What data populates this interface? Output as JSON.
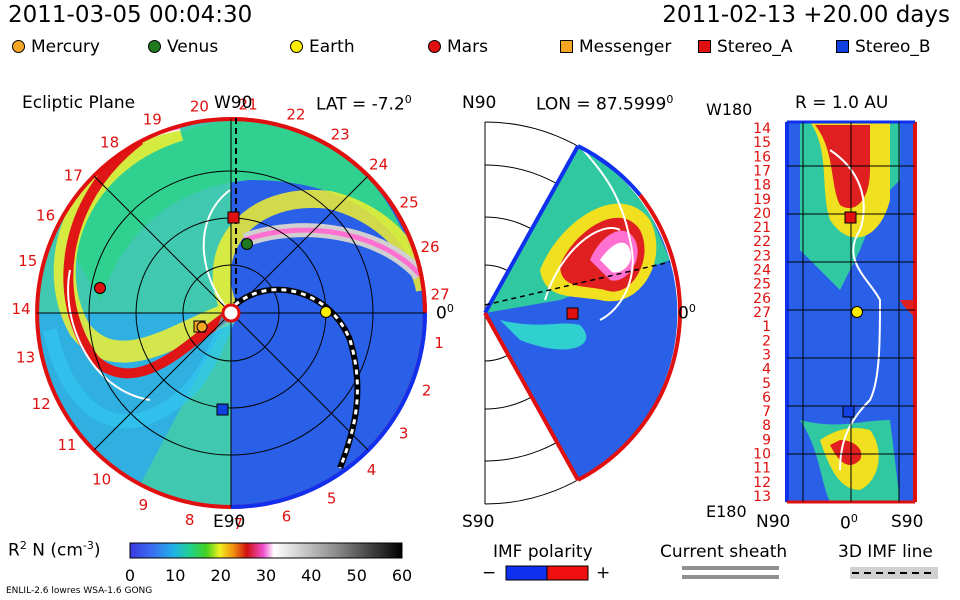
{
  "header": {
    "datetime": "2011-03-05 00:04:30",
    "model_run": "2011-02-13 +20.00 days"
  },
  "legend": {
    "items": [
      {
        "label": "Mercury",
        "color": "#f5a623",
        "shape": "circle"
      },
      {
        "label": "Venus",
        "color": "#1f7a1f",
        "shape": "circle"
      },
      {
        "label": "Earth",
        "color": "#ffee00",
        "shape": "circle"
      },
      {
        "label": "Mars",
        "color": "#e01010",
        "shape": "circle"
      },
      {
        "label": "Messenger",
        "color": "#f5a623",
        "shape": "square"
      },
      {
        "label": "Stereo_A",
        "color": "#e01010",
        "shape": "square"
      },
      {
        "label": "Stereo_B",
        "color": "#1040e0",
        "shape": "square"
      }
    ]
  },
  "panels": {
    "ecliptic": {
      "title": "Ecliptic Plane",
      "top_label": "W90",
      "bottom_label": "E90",
      "right_label": "0",
      "right_label_sup": "0",
      "lat_prefix": "LAT = -7.2",
      "lat_sup": "0",
      "rotation_numbers": [
        "1",
        "2",
        "3",
        "4",
        "5",
        "6",
        "7",
        "8",
        "9",
        "10",
        "11",
        "12",
        "13",
        "14",
        "15",
        "16",
        "17",
        "18",
        "19",
        "20",
        "21",
        "22",
        "23",
        "24",
        "25",
        "26",
        "27"
      ]
    },
    "meridional": {
      "top_label": "N90",
      "bottom_label": "S90",
      "right_label": "0",
      "right_label_sup": "0",
      "lon_prefix": "LON = 87.5999",
      "lon_sup": "0"
    },
    "radial": {
      "r_label": "R = 1.0 AU",
      "top_left_label": "W180",
      "bottom_left_label": "E180",
      "x_labels": [
        "N90",
        "0",
        "S90"
      ],
      "x_zero_sup": "0",
      "y_labels": [
        "14",
        "15",
        "16",
        "17",
        "18",
        "19",
        "20",
        "21",
        "22",
        "23",
        "24",
        "25",
        "26",
        "27",
        "1",
        "2",
        "3",
        "4",
        "5",
        "6",
        "7",
        "8",
        "9",
        "10",
        "11",
        "12",
        "13"
      ]
    }
  },
  "colorbar": {
    "label": "R",
    "label_sup": "2",
    "label_rest": " N (cm",
    "label_sup2": "-3",
    "label_end": ")",
    "ticks": [
      "0",
      "10",
      "20",
      "30",
      "40",
      "50",
      "60"
    ]
  },
  "imf_polarity": {
    "title": "IMF polarity",
    "minus": "−",
    "plus": "+",
    "neg_color": "#1030f0",
    "pos_color": "#f01010"
  },
  "current_sheath": {
    "title": "Current sheath"
  },
  "imf_line": {
    "title": "3D IMF line"
  },
  "footer": {
    "model_info": "ENLIL-2.6 lowres WSA-1.6 GONG"
  }
}
